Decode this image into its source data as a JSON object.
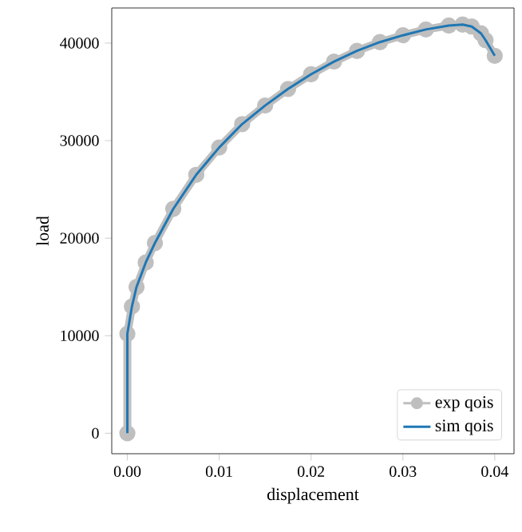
{
  "chart_data": {
    "type": "line",
    "xlabel": "displacement",
    "ylabel": "load",
    "xlim": [
      -0.0017,
      0.0421
    ],
    "ylim": [
      -2100,
      43600
    ],
    "xticks": [
      {
        "value": 0,
        "label": "0.00"
      },
      0.01,
      0.02,
      0.03,
      0.04
    ],
    "yticks": [
      0,
      10000,
      20000,
      30000,
      40000
    ],
    "legend": "bottom right",
    "grid": false,
    "series": [
      {
        "name": "exp qois",
        "color": "#bfbfbf",
        "marker": "circle",
        "x": [
          0,
          0,
          0.0005,
          0.001,
          0.002,
          0.003,
          0.005,
          0.0075,
          0.01,
          0.0125,
          0.015,
          0.0175,
          0.02,
          0.0225,
          0.025,
          0.0275,
          0.03,
          0.0325,
          0.035,
          0.0365,
          0.0375,
          0.0385,
          0.039,
          0.04
        ],
        "values": [
          0,
          10200,
          13000,
          15000,
          17500,
          19500,
          23000,
          26500,
          29300,
          31700,
          33600,
          35300,
          36800,
          38100,
          39200,
          40100,
          40800,
          41400,
          41800,
          41900,
          41700,
          41000,
          40300,
          38700
        ]
      },
      {
        "name": "sim qois",
        "color": "#1f77b4",
        "marker": "none",
        "x": [
          0,
          0,
          0.0005,
          0.001,
          0.002,
          0.003,
          0.005,
          0.0075,
          0.01,
          0.0125,
          0.015,
          0.0175,
          0.02,
          0.0225,
          0.025,
          0.0275,
          0.03,
          0.0325,
          0.035,
          0.0365,
          0.0375,
          0.0385,
          0.039,
          0.04
        ],
        "values": [
          0,
          10200,
          13000,
          15000,
          17500,
          19500,
          23000,
          26500,
          29300,
          31700,
          33600,
          35300,
          36800,
          38100,
          39200,
          40100,
          40800,
          41400,
          41800,
          41900,
          41700,
          41000,
          40300,
          38700
        ]
      }
    ]
  }
}
